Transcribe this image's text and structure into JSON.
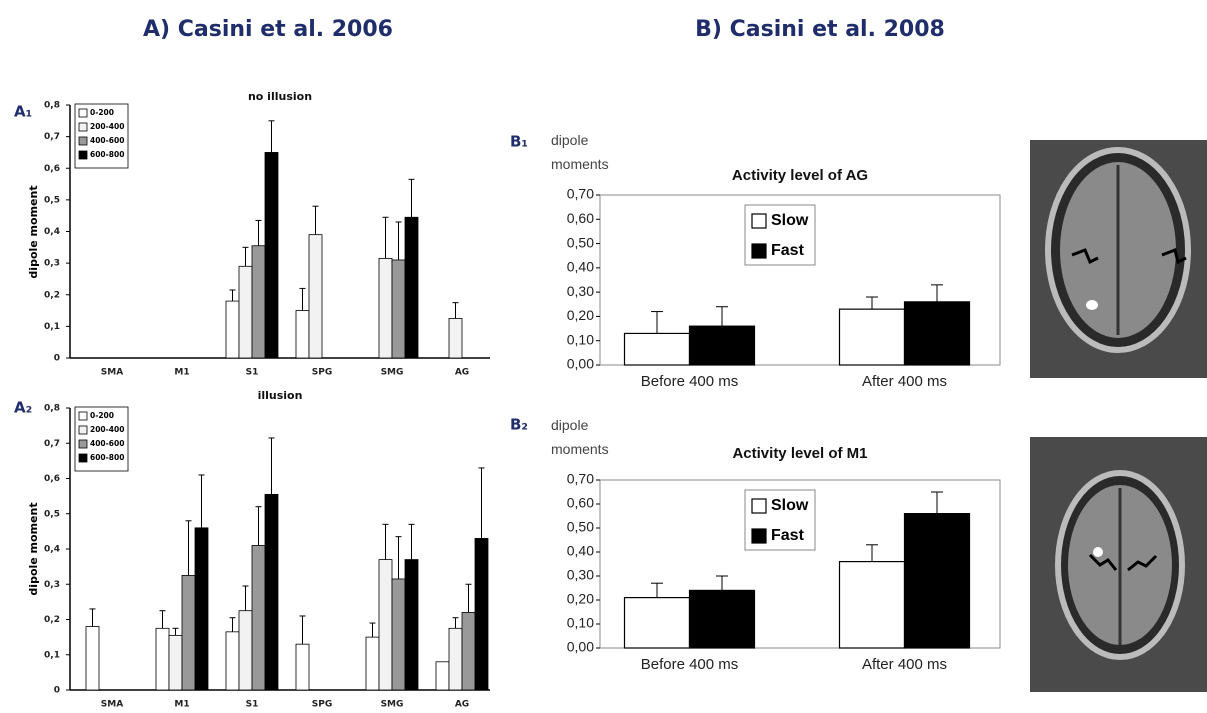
{
  "headings": [
    "A) Casini et al. 2006",
    "B) Casini et al. 2008"
  ],
  "chart_data": [
    {
      "type": "bar",
      "panel": "A₁",
      "title": "no illusion",
      "ylabel": "dipole moment",
      "categories": [
        "SMA",
        "M1",
        "S1",
        "SPG",
        "SMG",
        "AG"
      ],
      "series": [
        {
          "name": "0-200",
          "color": "#ffffff",
          "values": [
            null,
            null,
            0.18,
            0.15,
            null,
            null
          ],
          "errors": [
            null,
            null,
            0.035,
            0.07,
            null,
            null
          ]
        },
        {
          "name": "200-400",
          "color": "#f2f2f2",
          "values": [
            null,
            null,
            0.29,
            0.39,
            0.315,
            0.125
          ],
          "errors": [
            null,
            null,
            0.06,
            0.09,
            0.13,
            0.05
          ]
        },
        {
          "name": "400-600",
          "color": "#999999",
          "values": [
            null,
            null,
            0.355,
            null,
            0.31,
            null
          ],
          "errors": [
            null,
            null,
            0.08,
            null,
            0.12,
            null
          ]
        },
        {
          "name": "600-800",
          "color": "#000000",
          "values": [
            null,
            null,
            0.65,
            null,
            0.445,
            null
          ],
          "errors": [
            null,
            null,
            0.1,
            null,
            0.12,
            null
          ]
        }
      ],
      "ylim": [
        0,
        0.8
      ],
      "yticks": [
        0,
        {
          "value": 0.1,
          "label": "0,1"
        },
        {
          "value": 0.2,
          "label": "0,2"
        },
        {
          "value": 0.3,
          "label": "0,3"
        },
        {
          "value": 0.4,
          "label": "0,4"
        },
        {
          "value": 0.5,
          "label": "0,5"
        },
        {
          "value": 0.6,
          "label": "0,6"
        },
        {
          "value": 0.7,
          "label": "0,7"
        },
        {
          "value": 0.8,
          "label": "0,8"
        }
      ],
      "legend": "upper left",
      "grid": false
    },
    {
      "type": "bar",
      "panel": "A₂",
      "title": "illusion",
      "ylabel": "dipole moment",
      "categories": [
        "SMA",
        "M1",
        "S1",
        "SPG",
        "SMG",
        "AG"
      ],
      "series": [
        {
          "name": "0-200",
          "color": "#ffffff",
          "values": [
            0.18,
            0.175,
            0.165,
            0.13,
            0.15,
            0.08
          ],
          "errors": [
            0.05,
            0.05,
            0.04,
            0.08,
            0.04,
            null
          ]
        },
        {
          "name": "200-400",
          "color": "#f2f2f2",
          "values": [
            null,
            0.155,
            0.225,
            null,
            0.37,
            0.175
          ],
          "errors": [
            null,
            0.02,
            0.07,
            null,
            0.1,
            0.03
          ]
        },
        {
          "name": "400-600",
          "color": "#999999",
          "values": [
            null,
            0.325,
            0.41,
            null,
            0.315,
            0.22
          ],
          "errors": [
            null,
            0.155,
            0.11,
            null,
            0.12,
            0.08
          ]
        },
        {
          "name": "600-800",
          "color": "#000000",
          "values": [
            null,
            0.46,
            0.555,
            null,
            0.37,
            0.43
          ],
          "errors": [
            null,
            0.15,
            0.16,
            null,
            0.1,
            0.2
          ]
        }
      ],
      "ylim": [
        0,
        0.8
      ],
      "yticks": [
        0,
        {
          "value": 0.1,
          "label": "0,1"
        },
        {
          "value": 0.2,
          "label": "0,2"
        },
        {
          "value": 0.3,
          "label": "0,3"
        },
        {
          "value": 0.4,
          "label": "0,4"
        },
        {
          "value": 0.5,
          "label": "0,5"
        },
        {
          "value": 0.6,
          "label": "0,6"
        },
        {
          "value": 0.7,
          "label": "0,7"
        },
        {
          "value": 0.8,
          "label": "0,8"
        }
      ],
      "legend": "upper left",
      "grid": false
    },
    {
      "type": "bar",
      "panel": "B₁",
      "title": "Activity level of AG",
      "ylabel": "dipole moments",
      "categories": [
        "Before 400 ms",
        "After 400 ms"
      ],
      "series": [
        {
          "name": "Slow",
          "color": "#ffffff",
          "values": [
            0.13,
            0.23
          ],
          "errors": [
            0.09,
            0.05
          ]
        },
        {
          "name": "Fast",
          "color": "#000000",
          "values": [
            0.16,
            0.26
          ],
          "errors": [
            0.08,
            0.07
          ]
        }
      ],
      "ylim": [
        0,
        0.7
      ],
      "yticks": [
        {
          "value": 0,
          "label": "0,00"
        },
        {
          "value": 0.1,
          "label": "0,10"
        },
        {
          "value": 0.2,
          "label": "0,20"
        },
        {
          "value": 0.3,
          "label": "0,30"
        },
        {
          "value": 0.4,
          "label": "0,40"
        },
        {
          "value": 0.5,
          "label": "0,50"
        },
        {
          "value": 0.6,
          "label": "0,60"
        },
        {
          "value": 0.7,
          "label": "0,70"
        }
      ],
      "legend": "upper center",
      "grid": false
    },
    {
      "type": "bar",
      "panel": "B₂",
      "title": "Activity level of M1",
      "ylabel": "dipole moments",
      "categories": [
        "Before 400 ms",
        "After 400 ms"
      ],
      "series": [
        {
          "name": "Slow",
          "color": "#ffffff",
          "values": [
            0.21,
            0.36
          ],
          "errors": [
            0.06,
            0.07
          ]
        },
        {
          "name": "Fast",
          "color": "#000000",
          "values": [
            0.24,
            0.56
          ],
          "errors": [
            0.06,
            0.09
          ]
        }
      ],
      "ylim": [
        0,
        0.7
      ],
      "yticks": [
        {
          "value": 0,
          "label": "0,00"
        },
        {
          "value": 0.1,
          "label": "0,10"
        },
        {
          "value": 0.2,
          "label": "0,20"
        },
        {
          "value": 0.3,
          "label": "0,30"
        },
        {
          "value": 0.4,
          "label": "0,40"
        },
        {
          "value": 0.5,
          "label": "0,50"
        },
        {
          "value": 0.6,
          "label": "0,60"
        },
        {
          "value": 0.7,
          "label": "0,70"
        }
      ],
      "legend": "upper center",
      "grid": false
    }
  ]
}
